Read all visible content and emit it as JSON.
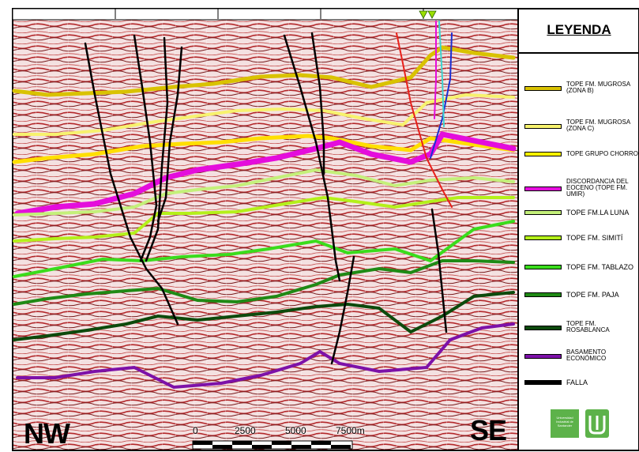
{
  "legend": {
    "title": "LEYENDA",
    "items": [
      {
        "label": "TOPE FM. MUGROSA\n(ZONA B)",
        "color": "#d9c200",
        "size": "small"
      },
      {
        "label": "TOPE FM. MUGROSA\n(ZONA C)",
        "color": "#f7f26e",
        "size": "small"
      },
      {
        "label": "TOPE GRUPO CHORRO",
        "color": "#fff200",
        "size": "small"
      },
      {
        "label": "DISCORDANCIA DEL\nEOCENO (TOPE FM.\nUMIR)",
        "color": "#e40ddc",
        "size": "small"
      },
      {
        "label": "TOPE FM.LA LUNA",
        "color": "#c4f07a",
        "size": "big"
      },
      {
        "label": "TOPE FM. SIMITÍ",
        "color": "#b4f01a",
        "size": "big"
      },
      {
        "label": "TOPE FM. TABLAZO",
        "color": "#3adc1c",
        "size": "big"
      },
      {
        "label": "TOPE FM. PAJA",
        "color": "#1f8a15",
        "size": "big"
      },
      {
        "label": "TOPE FM.\nROSABLANCA",
        "color": "#0c4a0c",
        "size": "small"
      },
      {
        "label": "BASAMENTO\nECONÓMICO",
        "color": "#7d11a8",
        "size": "small"
      },
      {
        "label": "FALLA",
        "color": "#000000",
        "size": "big"
      }
    ]
  },
  "section": {
    "left_label": "NW",
    "right_label": "SE",
    "scale_labels": [
      "0",
      "2500",
      "5000",
      "7500m"
    ]
  },
  "logo": {
    "university_text": "Universidad\nIndustrial de\nSantander"
  }
}
